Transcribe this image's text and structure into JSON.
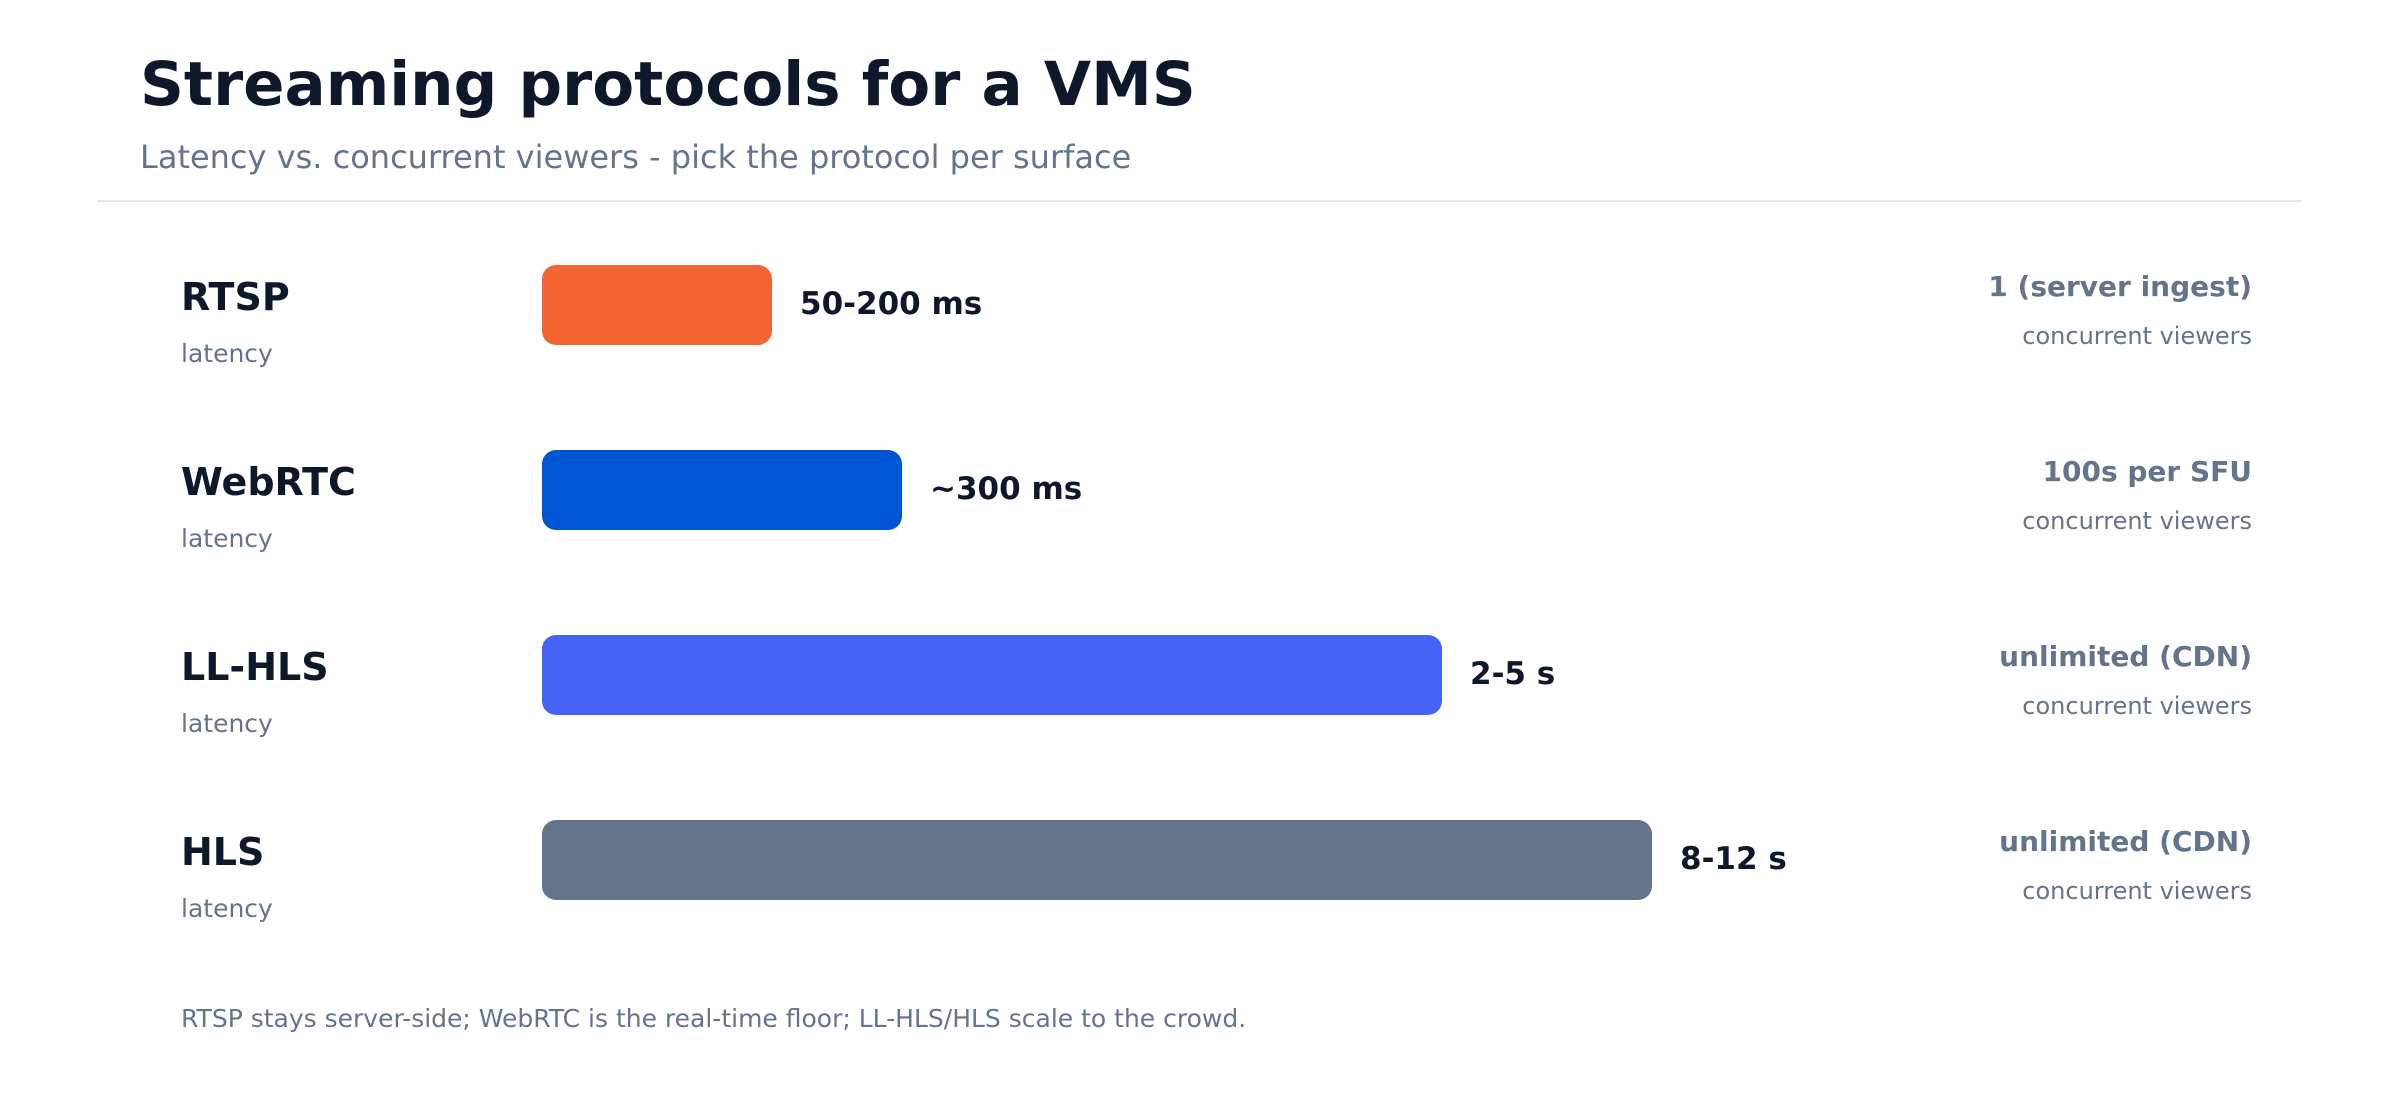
{
  "header": {
    "title": "Streaming protocols for a VMS",
    "subtitle": "Latency vs. concurrent viewers - pick the protocol per surface"
  },
  "footnote": "RTSP stays server-side; WebRTC is the real-time floor; LL-HLS/HLS scale to the crowd.",
  "chart_data": {
    "type": "bar",
    "orientation": "horizontal",
    "title": "Streaming protocols for a VMS",
    "subtitle": "Latency vs. concurrent viewers - pick the protocol per surface",
    "categories": [
      "RTSP",
      "WebRTC",
      "LL-HLS",
      "HLS"
    ],
    "category_sublabel": "latency",
    "series": [
      {
        "values": [
          0.23,
          0.36,
          0.9,
          1.11
        ],
        "value_labels": [
          "50-200 ms",
          "~300 ms",
          "2-5 s",
          "8-12 s"
        ],
        "colors": [
          "#f26532",
          "#0055d4",
          "#4563f5",
          "#64748b"
        ]
      }
    ],
    "viewers": [
      "1 (server ingest)",
      "100s per SFU",
      "unlimited (CDN)",
      "unlimited (CDN)"
    ],
    "viewers_sublabel": "concurrent viewers",
    "grid": false,
    "legend": "none"
  }
}
